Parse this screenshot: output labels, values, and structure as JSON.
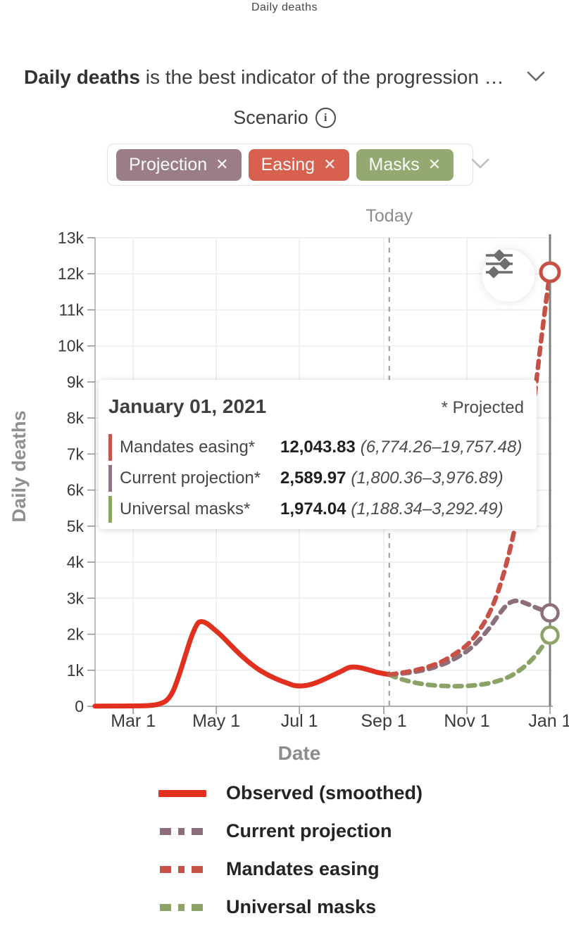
{
  "page": {
    "title": "Daily deaths"
  },
  "description": {
    "bold": "Daily deaths",
    "rest": " is the best indicator of the progression …"
  },
  "scenario": {
    "label": "Scenario",
    "chips": [
      {
        "label": "Projection",
        "color": "#9a7d86"
      },
      {
        "label": "Easing",
        "color": "#d7604e"
      },
      {
        "label": "Masks",
        "color": "#93a971"
      }
    ]
  },
  "icons": {
    "close": "✕",
    "info": "i"
  },
  "tooltip": {
    "date": "January 01, 2021",
    "note": "* Projected",
    "rows": [
      {
        "name": "Mandates easing*",
        "value": "12,043.83",
        "range": "(6,774.26–19,757.48)",
        "color": "#c4574b"
      },
      {
        "name": "Current projection*",
        "value": "2,589.97",
        "range": "(1,800.36–3,976.89)",
        "color": "#8e7583"
      },
      {
        "name": "Universal masks*",
        "value": "1,974.04",
        "range": "(1,188.34–3,292.49)",
        "color": "#87a75e"
      }
    ]
  },
  "chart_data": {
    "type": "line",
    "title": "Daily deaths",
    "xlabel": "Date",
    "ylabel": "Daily deaths",
    "x_unit_note": "day index measured from Feb 1, 2020",
    "xlim_days": [
      0,
      334
    ],
    "ylim": [
      0,
      13000
    ],
    "grid": true,
    "today_marker": {
      "label": "Today",
      "day": 216
    },
    "x_ticks": [
      {
        "label": "Mar 1",
        "day": 28
      },
      {
        "label": "May 1",
        "day": 89
      },
      {
        "label": "Jul 1",
        "day": 150
      },
      {
        "label": "Sep 1",
        "day": 212
      },
      {
        "label": "Nov 1",
        "day": 273
      },
      {
        "label": "Jan 1",
        "day": 334
      }
    ],
    "y_ticks": [
      {
        "label": "0",
        "value": 0
      },
      {
        "label": "1k",
        "value": 1000
      },
      {
        "label": "2k",
        "value": 2000
      },
      {
        "label": "3k",
        "value": 3000
      },
      {
        "label": "4k",
        "value": 4000
      },
      {
        "label": "5k",
        "value": 5000
      },
      {
        "label": "6k",
        "value": 6000
      },
      {
        "label": "7k",
        "value": 7000
      },
      {
        "label": "8k",
        "value": 8000
      },
      {
        "label": "9k",
        "value": 9000
      },
      {
        "label": "10k",
        "value": 10000
      },
      {
        "label": "11k",
        "value": 11000
      },
      {
        "label": "12k",
        "value": 12000
      },
      {
        "label": "13k",
        "value": 13000
      }
    ],
    "series": [
      {
        "name": "Observed (smoothed)",
        "color": "#e2301f",
        "dash": false,
        "width": 7,
        "end_marker": false,
        "points": [
          [
            0,
            5
          ],
          [
            20,
            8
          ],
          [
            35,
            14
          ],
          [
            45,
            45
          ],
          [
            52,
            150
          ],
          [
            57,
            400
          ],
          [
            62,
            900
          ],
          [
            67,
            1500
          ],
          [
            71,
            1950
          ],
          [
            75,
            2280
          ],
          [
            78,
            2350
          ],
          [
            82,
            2300
          ],
          [
            87,
            2150
          ],
          [
            93,
            1950
          ],
          [
            100,
            1680
          ],
          [
            107,
            1420
          ],
          [
            114,
            1190
          ],
          [
            121,
            1000
          ],
          [
            128,
            850
          ],
          [
            135,
            730
          ],
          [
            141,
            645
          ],
          [
            146,
            580
          ],
          [
            151,
            565
          ],
          [
            156,
            585
          ],
          [
            162,
            650
          ],
          [
            168,
            745
          ],
          [
            175,
            870
          ],
          [
            181,
            975
          ],
          [
            186,
            1070
          ],
          [
            191,
            1090
          ],
          [
            196,
            1060
          ],
          [
            202,
            1000
          ],
          [
            208,
            935
          ],
          [
            216,
            880
          ]
        ]
      },
      {
        "name": "Universal masks",
        "color": "#8ca368",
        "dash": true,
        "width": 6.5,
        "end_marker": true,
        "marker_r": 11.5,
        "points": [
          [
            216,
            880
          ],
          [
            221,
            800
          ],
          [
            228,
            720
          ],
          [
            235,
            655
          ],
          [
            243,
            605
          ],
          [
            251,
            575
          ],
          [
            259,
            560
          ],
          [
            267,
            558
          ],
          [
            275,
            570
          ],
          [
            283,
            600
          ],
          [
            291,
            655
          ],
          [
            298,
            730
          ],
          [
            305,
            840
          ],
          [
            311,
            980
          ],
          [
            317,
            1160
          ],
          [
            323,
            1390
          ],
          [
            328,
            1640
          ],
          [
            334,
            1974
          ]
        ]
      },
      {
        "name": "Current projection",
        "color": "#8c6e7d",
        "dash": true,
        "width": 6.5,
        "end_marker": true,
        "marker_r": 11.5,
        "points": [
          [
            216,
            880
          ],
          [
            223,
            900
          ],
          [
            231,
            935
          ],
          [
            239,
            985
          ],
          [
            247,
            1060
          ],
          [
            255,
            1160
          ],
          [
            263,
            1300
          ],
          [
            273,
            1530
          ],
          [
            281,
            1800
          ],
          [
            289,
            2150
          ],
          [
            296,
            2520
          ],
          [
            302,
            2800
          ],
          [
            307,
            2915
          ],
          [
            312,
            2910
          ],
          [
            318,
            2830
          ],
          [
            325,
            2720
          ],
          [
            334,
            2590
          ]
        ]
      },
      {
        "name": "Mandates easing",
        "color": "#c75146",
        "dash": true,
        "width": 6.5,
        "end_marker": true,
        "marker_r": 13,
        "points": [
          [
            216,
            880
          ],
          [
            225,
            930
          ],
          [
            235,
            1000
          ],
          [
            245,
            1100
          ],
          [
            255,
            1250
          ],
          [
            264,
            1450
          ],
          [
            273,
            1700
          ],
          [
            281,
            2050
          ],
          [
            289,
            2550
          ],
          [
            296,
            3200
          ],
          [
            303,
            4100
          ],
          [
            310,
            5300
          ],
          [
            316,
            6700
          ],
          [
            322,
            8400
          ],
          [
            327,
            10000
          ],
          [
            331,
            11200
          ],
          [
            334,
            12044
          ]
        ]
      }
    ],
    "endpoint_values": {
      "Mandates easing": 12043.83,
      "Current projection": 2589.97,
      "Universal masks": 1974.04
    }
  },
  "legend": {
    "items": [
      {
        "label": "Observed (smoothed)",
        "color": "#e2301f",
        "dash": false
      },
      {
        "label": "Current projection",
        "color": "#8c6e7d",
        "dash": true
      },
      {
        "label": "Mandates easing",
        "color": "#c75146",
        "dash": true
      },
      {
        "label": "Universal masks",
        "color": "#8ca368",
        "dash": true
      }
    ]
  }
}
